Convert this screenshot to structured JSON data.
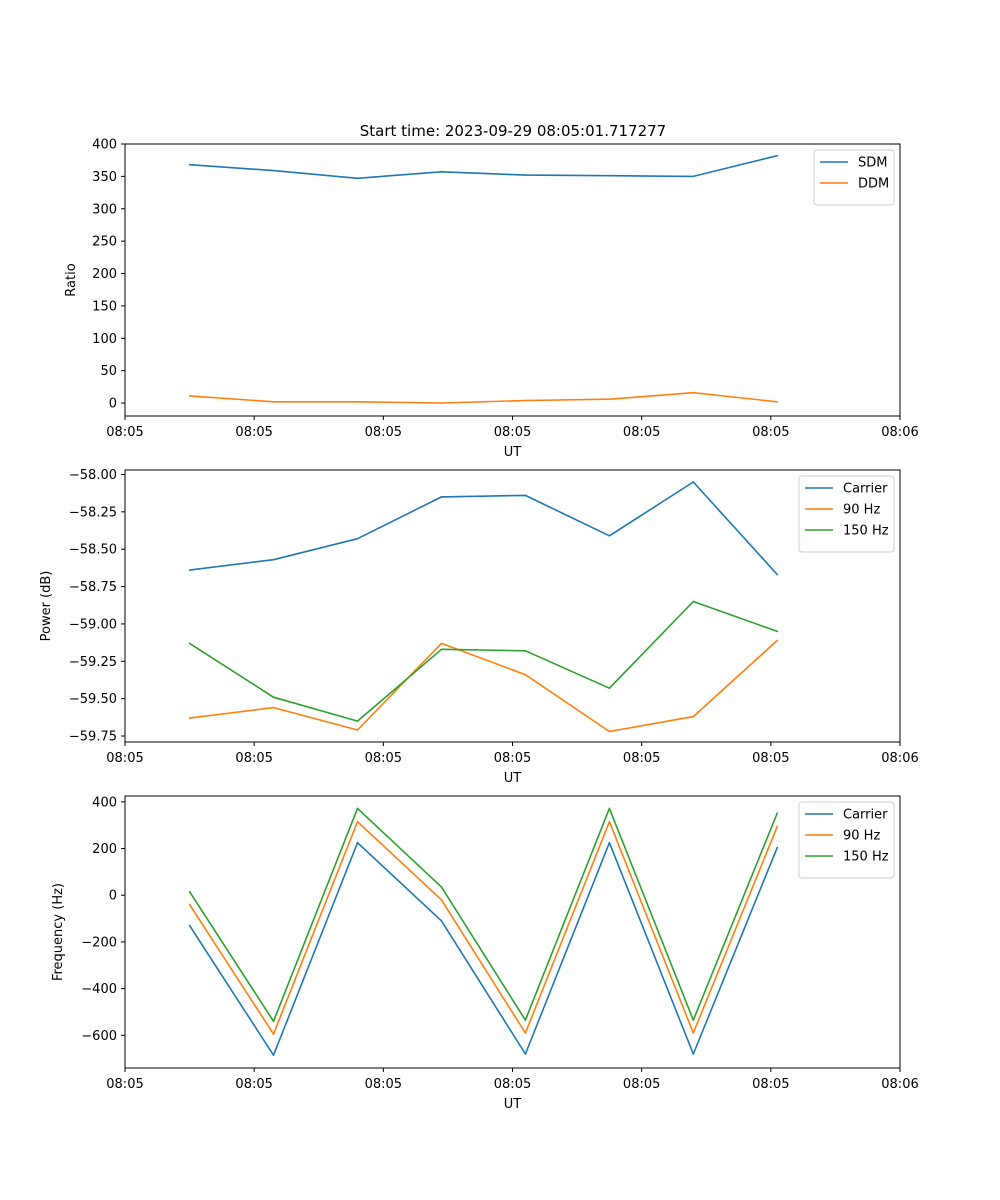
{
  "figure": {
    "title": "Start time: 2023-09-29 08:05:01.717277",
    "background": "#ffffff"
  },
  "colors": {
    "blue": "#1f77b4",
    "orange": "#ff7f0e",
    "green": "#2ca02c",
    "axis": "#000000",
    "legend_border": "#cccccc"
  },
  "chart_data": [
    {
      "type": "line",
      "xlabel": "UT",
      "ylabel": "Ratio",
      "x_tick_labels": [
        "08:05",
        "08:05",
        "08:05",
        "08:05",
        "08:05",
        "08:05",
        "08:06"
      ],
      "y_ticks": [
        0,
        50,
        100,
        150,
        200,
        250,
        300,
        350,
        400
      ],
      "y_tick_labels": [
        "0",
        "50",
        "100",
        "150",
        "200",
        "250",
        "300",
        "350",
        "400"
      ],
      "xlim": [
        0,
        6
      ],
      "ylim": [
        -20,
        400
      ],
      "x": [
        0.5,
        1.15,
        1.8,
        2.45,
        3.1,
        3.75,
        4.4,
        5.05
      ],
      "legend_position": "upper right",
      "series": [
        {
          "name": "SDM",
          "color": "#1f77b4",
          "values": [
            368,
            359,
            347,
            357,
            352,
            351,
            350,
            382
          ]
        },
        {
          "name": "DDM",
          "color": "#ff7f0e",
          "values": [
            11,
            2,
            2,
            0,
            4,
            6,
            16,
            2
          ]
        }
      ]
    },
    {
      "type": "line",
      "xlabel": "UT",
      "ylabel": "Power (dB)",
      "x_tick_labels": [
        "08:05",
        "08:05",
        "08:05",
        "08:05",
        "08:05",
        "08:05",
        "08:06"
      ],
      "y_ticks": [
        -58.0,
        -58.25,
        -58.5,
        -58.75,
        -59.0,
        -59.25,
        -59.5,
        -59.75
      ],
      "y_tick_labels": [
        "−58.00",
        "−58.25",
        "−58.50",
        "−58.75",
        "−59.00",
        "−59.25",
        "−59.50",
        "−59.75"
      ],
      "xlim": [
        0,
        6
      ],
      "ylim": [
        -59.79,
        -57.97
      ],
      "x": [
        0.5,
        1.15,
        1.8,
        2.45,
        3.1,
        3.75,
        4.4,
        5.05
      ],
      "legend_position": "upper right",
      "series": [
        {
          "name": "Carrier",
          "color": "#1f77b4",
          "values": [
            -58.64,
            -58.57,
            -58.43,
            -58.15,
            -58.14,
            -58.41,
            -58.05,
            -58.67
          ]
        },
        {
          "name": "90 Hz",
          "color": "#ff7f0e",
          "values": [
            -59.63,
            -59.56,
            -59.71,
            -59.13,
            -59.34,
            -59.72,
            -59.62,
            -59.11
          ]
        },
        {
          "name": "150 Hz",
          "color": "#2ca02c",
          "values": [
            -59.13,
            -59.49,
            -59.65,
            -59.17,
            -59.18,
            -59.43,
            -58.85,
            -59.05
          ]
        }
      ]
    },
    {
      "type": "line",
      "xlabel": "UT",
      "ylabel": "Frequency (Hz)",
      "x_tick_labels": [
        "08:05",
        "08:05",
        "08:05",
        "08:05",
        "08:05",
        "08:05",
        "08:06"
      ],
      "y_ticks": [
        400,
        200,
        0,
        -200,
        -400,
        -600
      ],
      "y_tick_labels": [
        "400",
        "200",
        "0",
        "−200",
        "−400",
        "−600"
      ],
      "xlim": [
        0,
        6
      ],
      "ylim": [
        -740,
        425
      ],
      "x": [
        0.5,
        1.15,
        1.8,
        2.45,
        3.1,
        3.75,
        4.4,
        5.05
      ],
      "legend_position": "upper right",
      "series": [
        {
          "name": "Carrier",
          "color": "#1f77b4",
          "values": [
            -130,
            -685,
            225,
            -110,
            -680,
            225,
            -680,
            205
          ]
        },
        {
          "name": "90 Hz",
          "color": "#ff7f0e",
          "values": [
            -40,
            -595,
            315,
            -20,
            -590,
            315,
            -590,
            295
          ]
        },
        {
          "name": "150 Hz",
          "color": "#2ca02c",
          "values": [
            15,
            -540,
            372,
            35,
            -535,
            372,
            -535,
            352
          ]
        }
      ]
    }
  ]
}
